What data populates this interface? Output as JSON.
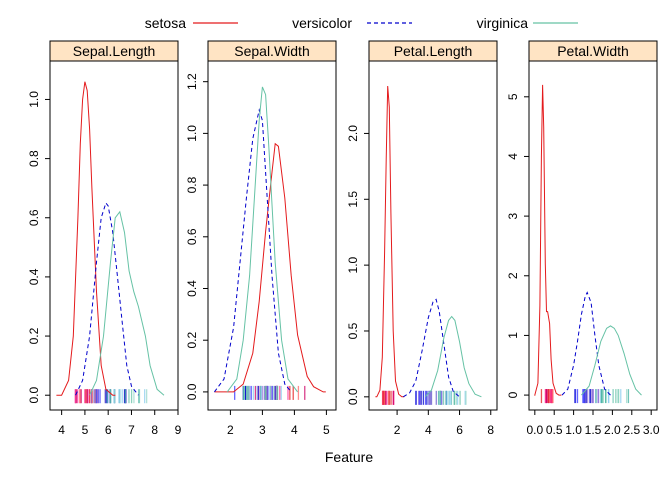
{
  "legend": {
    "items": [
      {
        "name": "setosa",
        "color": "#e41a1c",
        "dash": "solid"
      },
      {
        "name": "versicolor",
        "color": "#0000cc",
        "dash": "dashed"
      },
      {
        "name": "virginica",
        "color": "#66c2a5",
        "dash": "solid"
      }
    ]
  },
  "xlabel": "Feature",
  "chart_data": {
    "type": "line",
    "subtype": "density",
    "legend_placement": "top",
    "grid": false,
    "panels": [
      {
        "strip": "Sepal.Length",
        "xlim": [
          3.5,
          9.0
        ],
        "ylim": [
          -0.05,
          1.13
        ],
        "xticks": [
          4,
          5,
          6,
          7,
          8,
          9
        ],
        "yticks": [
          0.0,
          0.2,
          0.4,
          0.6,
          0.8,
          1.0
        ],
        "series": [
          {
            "name": "setosa",
            "x": [
              4.0,
              4.3,
              4.5,
              4.7,
              4.8,
              4.9,
              5.0,
              5.1,
              5.2,
              5.3,
              5.5,
              5.7,
              5.9,
              6.2
            ],
            "y": [
              0.0,
              0.05,
              0.2,
              0.6,
              0.85,
              1.0,
              1.06,
              1.03,
              0.9,
              0.7,
              0.35,
              0.1,
              0.02,
              0.0
            ]
          },
          {
            "name": "versicolor",
            "x": [
              4.6,
              4.9,
              5.2,
              5.5,
              5.7,
              5.9,
              6.0,
              6.2,
              6.4,
              6.6,
              6.8,
              7.0,
              7.3
            ],
            "y": [
              0.0,
              0.05,
              0.2,
              0.45,
              0.6,
              0.65,
              0.64,
              0.55,
              0.4,
              0.25,
              0.1,
              0.03,
              0.0
            ]
          },
          {
            "name": "virginica",
            "x": [
              5.2,
              5.5,
              5.8,
              6.1,
              6.3,
              6.5,
              6.7,
              6.9,
              7.1,
              7.3,
              7.6,
              7.8,
              8.1,
              8.4
            ],
            "y": [
              0.0,
              0.05,
              0.2,
              0.45,
              0.6,
              0.62,
              0.55,
              0.42,
              0.35,
              0.3,
              0.2,
              0.1,
              0.02,
              0.0
            ]
          }
        ]
      },
      {
        "strip": "Sepal.Width",
        "xlim": [
          1.3,
          5.3
        ],
        "ylim": [
          -0.07,
          1.28
        ],
        "xticks": [
          2,
          3,
          4,
          5
        ],
        "yticks": [
          0.0,
          0.2,
          0.4,
          0.6,
          0.8,
          1.0,
          1.2
        ],
        "series": [
          {
            "name": "setosa",
            "x": [
              2.1,
              2.4,
              2.7,
              2.9,
              3.1,
              3.3,
              3.4,
              3.5,
              3.7,
              3.9,
              4.1,
              4.4,
              4.6,
              4.9
            ],
            "y": [
              0.0,
              0.03,
              0.15,
              0.35,
              0.62,
              0.85,
              0.96,
              0.95,
              0.75,
              0.45,
              0.22,
              0.06,
              0.02,
              0.0
            ]
          },
          {
            "name": "versicolor",
            "x": [
              1.5,
              1.8,
              2.1,
              2.3,
              2.5,
              2.7,
              2.9,
              3.0,
              3.1,
              3.3,
              3.5,
              3.7,
              3.9
            ],
            "y": [
              0.0,
              0.05,
              0.25,
              0.5,
              0.75,
              0.98,
              1.09,
              1.05,
              0.85,
              0.45,
              0.15,
              0.03,
              0.0
            ]
          },
          {
            "name": "virginica",
            "x": [
              1.9,
              2.2,
              2.4,
              2.6,
              2.8,
              2.9,
              3.0,
              3.1,
              3.2,
              3.4,
              3.6,
              3.8,
              4.1
            ],
            "y": [
              0.0,
              0.05,
              0.2,
              0.45,
              0.85,
              1.05,
              1.18,
              1.15,
              0.95,
              0.5,
              0.2,
              0.05,
              0.0
            ]
          }
        ]
      },
      {
        "strip": "Petal.Length",
        "xlim": [
          0.2,
          8.4
        ],
        "ylim": [
          -0.1,
          2.55
        ],
        "xticks": [
          2,
          4,
          6,
          8
        ],
        "yticks": [
          0.0,
          0.5,
          1.0,
          1.5,
          2.0
        ],
        "series": [
          {
            "name": "setosa",
            "x": [
              0.7,
              0.9,
              1.05,
              1.2,
              1.3,
              1.4,
              1.5,
              1.6,
              1.75,
              1.9,
              2.1,
              2.3
            ],
            "y": [
              0.0,
              0.05,
              0.3,
              1.1,
              1.8,
              2.36,
              2.2,
              1.4,
              0.5,
              0.12,
              0.02,
              0.0
            ]
          },
          {
            "name": "versicolor",
            "x": [
              2.4,
              2.8,
              3.2,
              3.6,
              4.0,
              4.3,
              4.5,
              4.7,
              5.0,
              5.3,
              5.6,
              6.0
            ],
            "y": [
              0.0,
              0.03,
              0.12,
              0.35,
              0.6,
              0.72,
              0.74,
              0.65,
              0.4,
              0.15,
              0.04,
              0.0
            ]
          },
          {
            "name": "virginica",
            "x": [
              3.8,
              4.2,
              4.6,
              5.0,
              5.3,
              5.5,
              5.7,
              6.0,
              6.3,
              6.6,
              7.0,
              7.4
            ],
            "y": [
              0.0,
              0.05,
              0.2,
              0.45,
              0.58,
              0.61,
              0.58,
              0.42,
              0.22,
              0.1,
              0.02,
              0.0
            ]
          }
        ]
      },
      {
        "strip": "Petal.Width",
        "xlim": [
          -0.15,
          3.15
        ],
        "ylim": [
          -0.25,
          5.6
        ],
        "xticks": [
          0.0,
          0.5,
          1.0,
          1.5,
          2.0,
          2.5,
          3.0
        ],
        "xtick_labels": [
          "0.0",
          "0.5",
          "1.0",
          "1.5",
          "2.0",
          "2.5",
          "3.0"
        ],
        "yticks": [
          0,
          1,
          2,
          3,
          4,
          5
        ],
        "series": [
          {
            "name": "setosa",
            "x": [
              0.0,
              0.08,
              0.13,
              0.17,
              0.2,
              0.23,
              0.27,
              0.3,
              0.33,
              0.38,
              0.42,
              0.47,
              0.55,
              0.62
            ],
            "y": [
              0.0,
              0.2,
              1.5,
              4.0,
              5.2,
              4.5,
              2.2,
              1.4,
              1.4,
              1.2,
              0.6,
              0.2,
              0.03,
              0.0
            ]
          },
          {
            "name": "versicolor",
            "x": [
              0.7,
              0.85,
              1.0,
              1.1,
              1.2,
              1.3,
              1.35,
              1.45,
              1.55,
              1.65,
              1.8,
              1.95
            ],
            "y": [
              0.0,
              0.1,
              0.5,
              0.9,
              1.35,
              1.65,
              1.72,
              1.55,
              1.0,
              0.5,
              0.1,
              0.0
            ]
          },
          {
            "name": "virginica",
            "x": [
              1.2,
              1.4,
              1.55,
              1.7,
              1.85,
              1.95,
              2.05,
              2.15,
              2.3,
              2.45,
              2.6,
              2.75
            ],
            "y": [
              0.0,
              0.15,
              0.5,
              0.9,
              1.12,
              1.16,
              1.12,
              1.0,
              0.7,
              0.35,
              0.1,
              0.0
            ]
          }
        ]
      }
    ]
  }
}
